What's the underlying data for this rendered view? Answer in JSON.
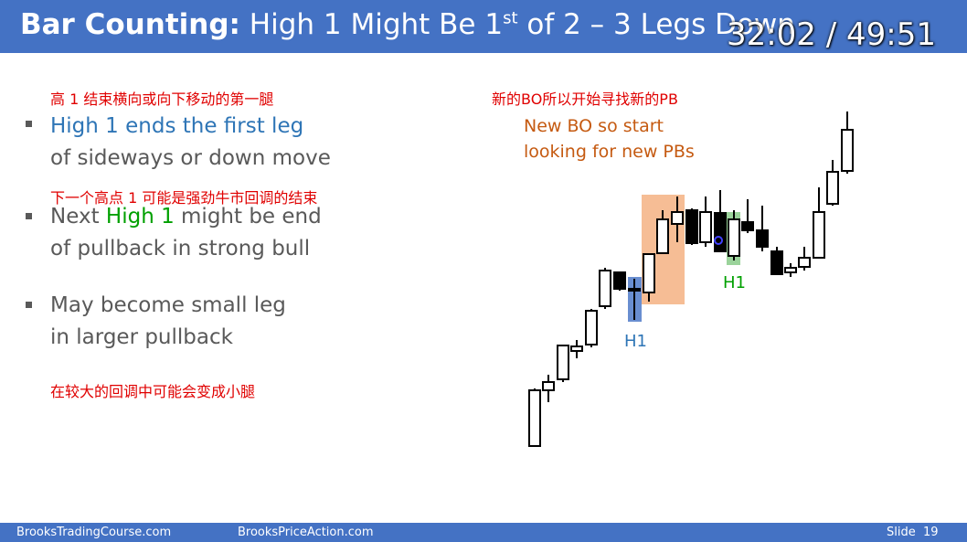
{
  "header": {
    "title_bold": "Bar Counting:",
    "title_main": "High 1 Might Be 1",
    "title_sup": "st",
    "title_rest": "of 2 – 3 Legs Down",
    "timestamp": "32:02 / 49:51"
  },
  "bullets": [
    {
      "cn": "高 1 结束横向或向下移动的第一腿",
      "parts": [
        "High 1 ends the first leg",
        "of sideways or down move"
      ]
    },
    {
      "cn": "下一个高点 1 可能是强劲牛市回调的结束",
      "parts": [
        "Next ",
        "High 1",
        " might be end",
        "of pullback in strong bull"
      ]
    },
    {
      "cn": "在较大的回调中可能会变成小腿",
      "parts": [
        "May become small leg",
        "in larger pullback"
      ]
    }
  ],
  "chart": {
    "cn_note": "新的BO所以开始寻找新的PB",
    "note_lines": [
      "New BO so start",
      "looking for new PBs"
    ],
    "h1_left": "H1",
    "h1_right": "H1"
  },
  "footer": {
    "left": "BrooksTradingCourse.com",
    "center": "BrooksPriceAction.com",
    "slide_label": "Slide",
    "slide_number": "19"
  }
}
